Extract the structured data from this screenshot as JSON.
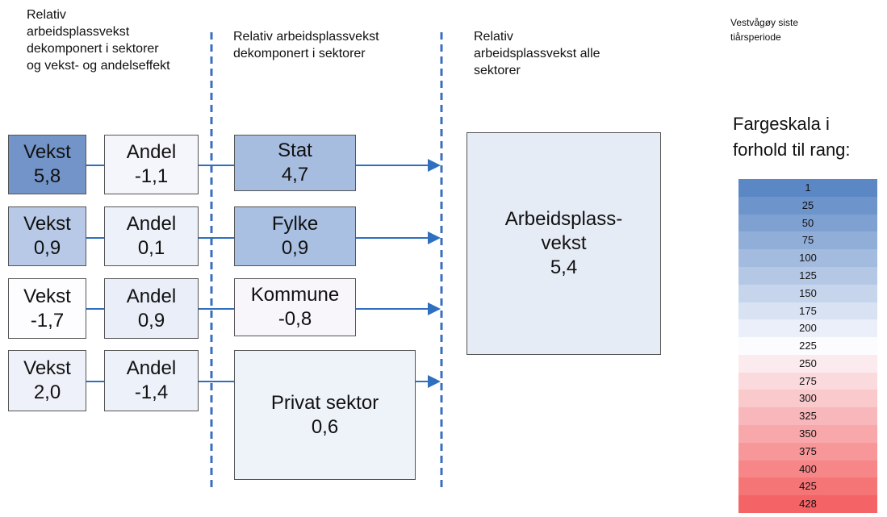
{
  "headers": [
    "Relativ\narbeidsplassvekst\ndekomponert i sektorer\nog vekst- og andelseffekt",
    "Relativ arbeidsplassvekst\ndekomponert i sektorer",
    "Relativ\narbeidsplassvekst alle\nsektorer"
  ],
  "note": "Vestvågøy siste\ntiårsperiode",
  "rows": [
    {
      "growth": {
        "label": "Vekst",
        "value": "5,8"
      },
      "share": {
        "label": "Andel",
        "value": "-1,1"
      },
      "sector": {
        "label": "Stat",
        "value": "4,7"
      }
    },
    {
      "growth": {
        "label": "Vekst",
        "value": "0,9"
      },
      "share": {
        "label": "Andel",
        "value": "0,1"
      },
      "sector": {
        "label": "Fylke",
        "value": "0,9"
      }
    },
    {
      "growth": {
        "label": "Vekst",
        "value": "-1,7"
      },
      "share": {
        "label": "Andel",
        "value": "0,9"
      },
      "sector": {
        "label": "Kommune",
        "value": "-0,8"
      }
    },
    {
      "growth": {
        "label": "Vekst",
        "value": "2,0"
      },
      "share": {
        "label": "Andel",
        "value": "-1,4"
      },
      "sector": {
        "label": "Privat sektor",
        "value": "0,6"
      }
    }
  ],
  "total": {
    "label": "Arbeidsplass-\nvekst",
    "value": "5,4"
  },
  "scale": {
    "title": "Fargeskala i\nforhold til rang:",
    "ranks": [
      1,
      25,
      50,
      75,
      100,
      125,
      150,
      175,
      200,
      225,
      250,
      275,
      300,
      325,
      350,
      375,
      400,
      425,
      428
    ]
  }
}
